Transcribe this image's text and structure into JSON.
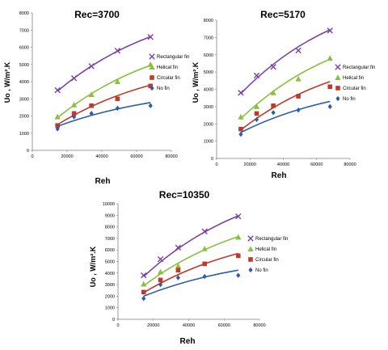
{
  "chart_data": [
    {
      "type": "scatter",
      "title": "Rec=3700",
      "xlabel": "Reh",
      "ylabel": "Uo , W/m².K",
      "xlim": [
        0,
        80000
      ],
      "ylim": [
        0,
        8000
      ],
      "xticks": [
        "0",
        "20000",
        "40000",
        "60000",
        "80000"
      ],
      "yticks": [
        "0",
        "1000",
        "2000",
        "3000",
        "4000",
        "5000",
        "6000",
        "7000",
        "8000"
      ],
      "grid": false,
      "legend_position": "right",
      "series": [
        {
          "name": "Rectangular fin",
          "marker": "x",
          "color": "#7b3fa8",
          "x": [
            14500,
            24000,
            34000,
            49000,
            68000
          ],
          "y": [
            3500,
            4200,
            4900,
            5800,
            6600
          ],
          "fit_x": [
            14500,
            68000
          ],
          "fit_y": [
            3450,
            6620
          ]
        },
        {
          "name": "Helical fin",
          "marker": "triangle",
          "color": "#8bbf3f",
          "x": [
            14500,
            24000,
            34000,
            49000,
            68000
          ],
          "y": [
            1950,
            2650,
            3250,
            4000,
            5000
          ],
          "fit_x": [
            14500,
            68000
          ],
          "fit_y": [
            1900,
            4950
          ]
        },
        {
          "name": "Circular fin",
          "marker": "square",
          "color": "#c0392b",
          "x": [
            14500,
            24000,
            34000,
            49000,
            68000
          ],
          "y": [
            1450,
            2150,
            2600,
            3000,
            3750
          ],
          "fit_x": [
            14500,
            68000
          ],
          "fit_y": [
            1500,
            3800
          ]
        },
        {
          "name": "No fin",
          "marker": "diamond",
          "color": "#2a5ea8",
          "x": [
            14500,
            24000,
            34000,
            49000,
            68000
          ],
          "y": [
            1250,
            1950,
            2150,
            2450,
            2600
          ],
          "fit_x": [
            14500,
            68000
          ],
          "fit_y": [
            1400,
            2780
          ]
        }
      ]
    },
    {
      "type": "scatter",
      "title": "Rec=5170",
      "xlabel": "Reh",
      "ylabel": "Uo , W/m².K",
      "xlim": [
        0,
        80000
      ],
      "ylim": [
        0,
        8000
      ],
      "xticks": [
        "0",
        "20000",
        "40000",
        "60000",
        "80000"
      ],
      "yticks": [
        "0",
        "1000",
        "2000",
        "3000",
        "4000",
        "5000",
        "6000",
        "7000",
        "8000"
      ],
      "grid": false,
      "legend_position": "right",
      "series": [
        {
          "name": "Rectangular fin",
          "marker": "x",
          "color": "#7b3fa8",
          "x": [
            14500,
            24000,
            34000,
            49000,
            68000
          ],
          "y": [
            3800,
            4800,
            5300,
            6250,
            7400
          ],
          "fit_x": [
            14500,
            68000
          ],
          "fit_y": [
            3750,
            7450
          ]
        },
        {
          "name": "Helical fin",
          "marker": "triangle",
          "color": "#8bbf3f",
          "x": [
            14500,
            24000,
            34000,
            49000,
            68000
          ],
          "y": [
            2400,
            3000,
            3800,
            4600,
            5800
          ],
          "fit_x": [
            14500,
            68000
          ],
          "fit_y": [
            2300,
            5750
          ]
        },
        {
          "name": "Circular fin",
          "marker": "square",
          "color": "#c0392b",
          "x": [
            14500,
            24000,
            34000,
            49000,
            68000
          ],
          "y": [
            1700,
            2600,
            3050,
            3600,
            4150
          ],
          "fit_x": [
            14500,
            68000
          ],
          "fit_y": [
            1650,
            4450
          ]
        },
        {
          "name": "No fin",
          "marker": "diamond",
          "color": "#2a5ea8",
          "x": [
            14500,
            24000,
            34000,
            49000,
            68000
          ],
          "y": [
            1400,
            2250,
            2650,
            2800,
            3000
          ],
          "fit_x": [
            14500,
            68000
          ],
          "fit_y": [
            1500,
            3300
          ]
        }
      ]
    },
    {
      "type": "scatter",
      "title": "Rec=10350",
      "xlabel": "Reh",
      "ylabel": "Uo , W/m².K",
      "xlim": [
        0,
        80000
      ],
      "ylim": [
        0,
        10000
      ],
      "xticks": [
        "0",
        "20000",
        "40000",
        "60000",
        "80000"
      ],
      "yticks": [
        "0",
        "1000",
        "2000",
        "3000",
        "4000",
        "5000",
        "6000",
        "7000",
        "8000",
        "9000",
        "10000"
      ],
      "grid": false,
      "legend_position": "right",
      "series": [
        {
          "name": "Rectangular fin",
          "marker": "x",
          "color": "#7b3fa8",
          "x": [
            14500,
            24000,
            34000,
            49000,
            68000
          ],
          "y": [
            3800,
            5200,
            6200,
            7600,
            8900
          ],
          "fit_x": [
            14500,
            68000
          ],
          "fit_y": [
            3700,
            8950
          ]
        },
        {
          "name": "Helical fin",
          "marker": "triangle",
          "color": "#8bbf3f",
          "x": [
            14500,
            24000,
            34000,
            49000,
            68000
          ],
          "y": [
            3050,
            4100,
            4600,
            6100,
            7100
          ],
          "fit_x": [
            14500,
            68000
          ],
          "fit_y": [
            2900,
            7150
          ]
        },
        {
          "name": "Circular fin",
          "marker": "square",
          "color": "#c0392b",
          "x": [
            14500,
            24000,
            34000,
            49000,
            68000
          ],
          "y": [
            2350,
            3400,
            4250,
            4800,
            5500
          ],
          "fit_x": [
            14500,
            68000
          ],
          "fit_y": [
            2300,
            5700
          ]
        },
        {
          "name": "No fin",
          "marker": "diamond",
          "color": "#2a5ea8",
          "x": [
            14500,
            24000,
            34000,
            49000,
            68000
          ],
          "y": [
            1800,
            3000,
            3600,
            3700,
            3800
          ],
          "fit_x": [
            14500,
            68000
          ],
          "fit_y": [
            2000,
            4250
          ]
        }
      ]
    }
  ]
}
